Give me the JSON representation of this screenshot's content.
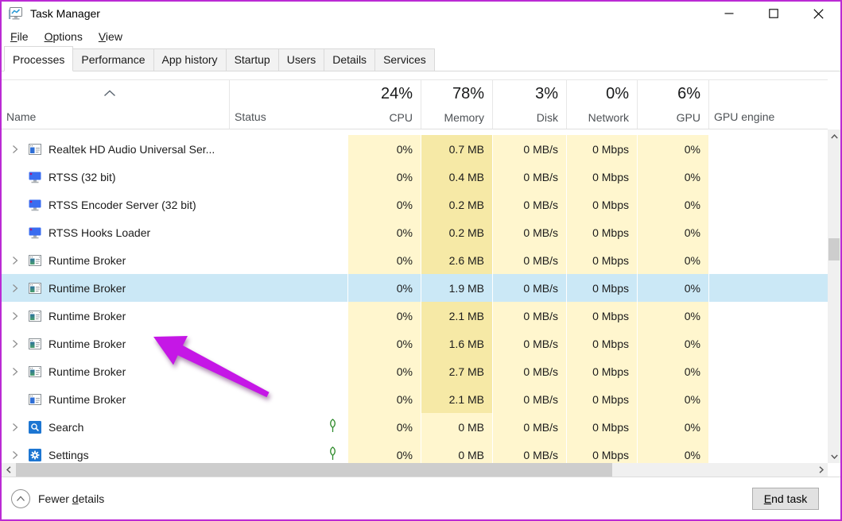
{
  "titlebar": {
    "title": "Task Manager"
  },
  "menu": {
    "items": [
      {
        "pre": "",
        "key": "F",
        "post": "ile"
      },
      {
        "pre": "",
        "key": "O",
        "post": "ptions"
      },
      {
        "pre": "",
        "key": "V",
        "post": "iew"
      }
    ]
  },
  "tabs": [
    {
      "label": "Processes",
      "active": true
    },
    {
      "label": "Performance",
      "active": false
    },
    {
      "label": "App history",
      "active": false
    },
    {
      "label": "Startup",
      "active": false
    },
    {
      "label": "Users",
      "active": false
    },
    {
      "label": "Details",
      "active": false
    },
    {
      "label": "Services",
      "active": false
    }
  ],
  "header": {
    "name_label": "Name",
    "status_label": "Status",
    "gpu_engine_label": "GPU engine",
    "sort_indicator": "ascending",
    "usage": [
      {
        "id": "cpu",
        "percent": "24%",
        "label": "CPU"
      },
      {
        "id": "memory",
        "percent": "78%",
        "label": "Memory"
      },
      {
        "id": "disk",
        "percent": "3%",
        "label": "Disk"
      },
      {
        "id": "network",
        "percent": "0%",
        "label": "Network"
      },
      {
        "id": "gpu",
        "percent": "6%",
        "label": "GPU"
      }
    ]
  },
  "rows": [
    {
      "name": "Realtek HD Audio Universal Ser...",
      "icon": "app-window-blue",
      "expandable": true,
      "selected": false,
      "status_icon": "",
      "cpu": "0%",
      "memory": "0.7 MB",
      "mem_heat": "mid",
      "disk": "0 MB/s",
      "network": "0 Mbps",
      "gpu": "0%",
      "gpu_engine": ""
    },
    {
      "name": "RTSS (32 bit)",
      "icon": "monitor",
      "expandable": false,
      "selected": false,
      "status_icon": "",
      "cpu": "0%",
      "memory": "0.4 MB",
      "mem_heat": "mid",
      "disk": "0 MB/s",
      "network": "0 Mbps",
      "gpu": "0%",
      "gpu_engine": ""
    },
    {
      "name": "RTSS Encoder Server (32 bit)",
      "icon": "monitor",
      "expandable": false,
      "selected": false,
      "status_icon": "",
      "cpu": "0%",
      "memory": "0.2 MB",
      "mem_heat": "mid",
      "disk": "0 MB/s",
      "network": "0 Mbps",
      "gpu": "0%",
      "gpu_engine": ""
    },
    {
      "name": "RTSS Hooks Loader",
      "icon": "monitor",
      "expandable": false,
      "selected": false,
      "status_icon": "",
      "cpu": "0%",
      "memory": "0.2 MB",
      "mem_heat": "mid",
      "disk": "0 MB/s",
      "network": "0 Mbps",
      "gpu": "0%",
      "gpu_engine": ""
    },
    {
      "name": "Runtime Broker",
      "icon": "app-window-teal",
      "expandable": true,
      "selected": false,
      "status_icon": "",
      "cpu": "0%",
      "memory": "2.6 MB",
      "mem_heat": "mid",
      "disk": "0 MB/s",
      "network": "0 Mbps",
      "gpu": "0%",
      "gpu_engine": ""
    },
    {
      "name": "Runtime Broker",
      "icon": "app-window-teal",
      "expandable": true,
      "selected": true,
      "status_icon": "",
      "cpu": "0%",
      "memory": "1.9 MB",
      "mem_heat": "mid",
      "disk": "0 MB/s",
      "network": "0 Mbps",
      "gpu": "0%",
      "gpu_engine": ""
    },
    {
      "name": "Runtime Broker",
      "icon": "app-window-teal",
      "expandable": true,
      "selected": false,
      "status_icon": "",
      "cpu": "0%",
      "memory": "2.1 MB",
      "mem_heat": "mid",
      "disk": "0 MB/s",
      "network": "0 Mbps",
      "gpu": "0%",
      "gpu_engine": ""
    },
    {
      "name": "Runtime Broker",
      "icon": "app-window-teal",
      "expandable": true,
      "selected": false,
      "status_icon": "",
      "cpu": "0%",
      "memory": "1.6 MB",
      "mem_heat": "mid",
      "disk": "0 MB/s",
      "network": "0 Mbps",
      "gpu": "0%",
      "gpu_engine": ""
    },
    {
      "name": "Runtime Broker",
      "icon": "app-window-teal",
      "expandable": true,
      "selected": false,
      "status_icon": "",
      "cpu": "0%",
      "memory": "2.7 MB",
      "mem_heat": "mid",
      "disk": "0 MB/s",
      "network": "0 Mbps",
      "gpu": "0%",
      "gpu_engine": ""
    },
    {
      "name": "Runtime Broker",
      "icon": "app-window-blue",
      "expandable": false,
      "selected": false,
      "status_icon": "",
      "cpu": "0%",
      "memory": "2.1 MB",
      "mem_heat": "mid",
      "disk": "0 MB/s",
      "network": "0 Mbps",
      "gpu": "0%",
      "gpu_engine": ""
    },
    {
      "name": "Search",
      "icon": "search-app",
      "expandable": true,
      "selected": false,
      "status_icon": "leaf",
      "cpu": "0%",
      "memory": "0 MB",
      "mem_heat": "light",
      "disk": "0 MB/s",
      "network": "0 Mbps",
      "gpu": "0%",
      "gpu_engine": ""
    },
    {
      "name": "Settings",
      "icon": "settings-app",
      "expandable": true,
      "selected": false,
      "status_icon": "leaf",
      "cpu": "0%",
      "memory": "0 MB",
      "mem_heat": "light",
      "disk": "0 MB/s",
      "network": "0 Mbps",
      "gpu": "0%",
      "gpu_engine": ""
    }
  ],
  "footer": {
    "fewer_details": {
      "pre": "Fewer ",
      "key": "d",
      "post": "etails"
    },
    "end_task": {
      "pre": "",
      "key": "E",
      "post": "nd task"
    }
  },
  "colors": {
    "border": "#bb2ad4",
    "heat_light": "#fff6ce",
    "heat_mid": "#f6e9a6",
    "selected": "#cbe8f6",
    "arrow": "#c517e6",
    "accent_blue": "#1d76d2",
    "leaf_green": "#2c8a2c"
  }
}
